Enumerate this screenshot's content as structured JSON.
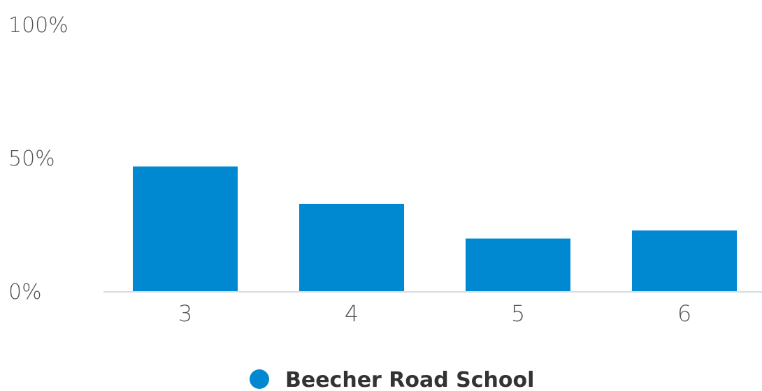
{
  "chart_data": {
    "type": "bar",
    "title": "",
    "xlabel": "",
    "ylabel": "",
    "categories": [
      "3",
      "4",
      "5",
      "6"
    ],
    "series": [
      {
        "name": "Beecher Road School",
        "values": [
          47,
          33,
          20,
          23
        ],
        "color": "#0088d1"
      }
    ],
    "ylim": [
      0,
      100
    ],
    "y_ticks": [
      0,
      50,
      100
    ],
    "y_tick_labels": [
      "0%",
      "50%",
      "100%"
    ],
    "grid": false,
    "legend_position": "bottom-center"
  }
}
